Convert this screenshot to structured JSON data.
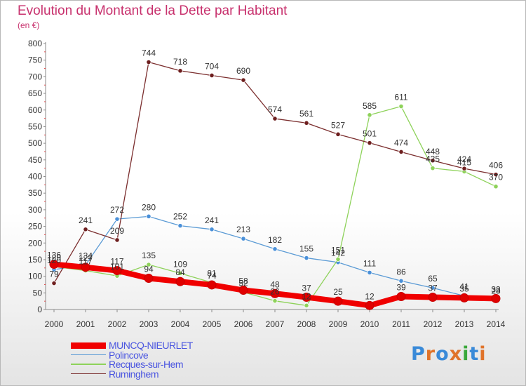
{
  "header": {
    "title": "Evolution du Montant de la Dette par Habitant",
    "subtitle": "(en €)"
  },
  "logo": {
    "text": "Proxiti",
    "colors": [
      "#3a8ad8",
      "#e0732a",
      "#3a8ad8",
      "#e0732a",
      "#3aa83a",
      "#3a8ad8",
      "#e0732a"
    ]
  },
  "chart_data": {
    "type": "line",
    "x": [
      "2000",
      "2001",
      "2002",
      "2003",
      "2004",
      "2005",
      "2006",
      "2007",
      "2008",
      "2009",
      "2010",
      "2011",
      "2012",
      "2013",
      "2014"
    ],
    "ylim": [
      0,
      800
    ],
    "yticks": [
      0,
      50,
      100,
      150,
      200,
      250,
      300,
      350,
      400,
      450,
      500,
      550,
      600,
      650,
      700,
      750,
      800
    ],
    "grid": false,
    "legend_position": "bottom-left",
    "series": [
      {
        "name": "MUNCQ-NIEURLET",
        "color": "#f00000",
        "marker": "#e00000",
        "width": 8,
        "values": [
          136,
          127,
          117,
          94,
          84,
          74,
          58,
          48,
          37,
          25,
          12,
          39,
          37,
          35,
          33
        ],
        "labels": [
          "136",
          "127",
          "117",
          "94",
          "84",
          "74",
          "58",
          "48",
          "37",
          "25",
          "12",
          "39",
          "37",
          "35",
          "33"
        ]
      },
      {
        "name": "Polincove",
        "color": "#5b9bd5",
        "marker": "#4a90d9",
        "width": 1.3,
        "values": [
          120,
          134,
          272,
          280,
          252,
          241,
          213,
          182,
          155,
          142,
          111,
          86,
          65,
          41,
          28
        ],
        "labels": [
          "120",
          "134",
          "272",
          "280",
          "252",
          "241",
          "213",
          "182",
          "155",
          "142",
          "111",
          "86",
          "65",
          "41",
          "28"
        ]
      },
      {
        "name": "Recques-sur-Hem",
        "color": "#8ed25a",
        "marker": "#8ed25a",
        "width": 1.3,
        "values": [
          129,
          117,
          101,
          135,
          109,
          81,
          52,
          26,
          12,
          151,
          585,
          611,
          425,
          415,
          370
        ],
        "labels": [
          "129",
          "117",
          "101",
          "135",
          "109",
          "81",
          "52",
          "26",
          "12",
          "151",
          "585",
          "611",
          "425",
          "415",
          "370"
        ]
      },
      {
        "name": "Ruminghem",
        "color": "#7b2e2e",
        "marker": "#6e1f1f",
        "width": 1.3,
        "values": [
          79,
          241,
          209,
          744,
          718,
          704,
          690,
          574,
          561,
          527,
          501,
          474,
          448,
          424,
          406
        ],
        "labels": [
          "79",
          "241",
          "209",
          "744",
          "718",
          "704",
          "690",
          "574",
          "561",
          "527",
          "501",
          "474",
          "448",
          "424",
          "406"
        ]
      }
    ]
  }
}
